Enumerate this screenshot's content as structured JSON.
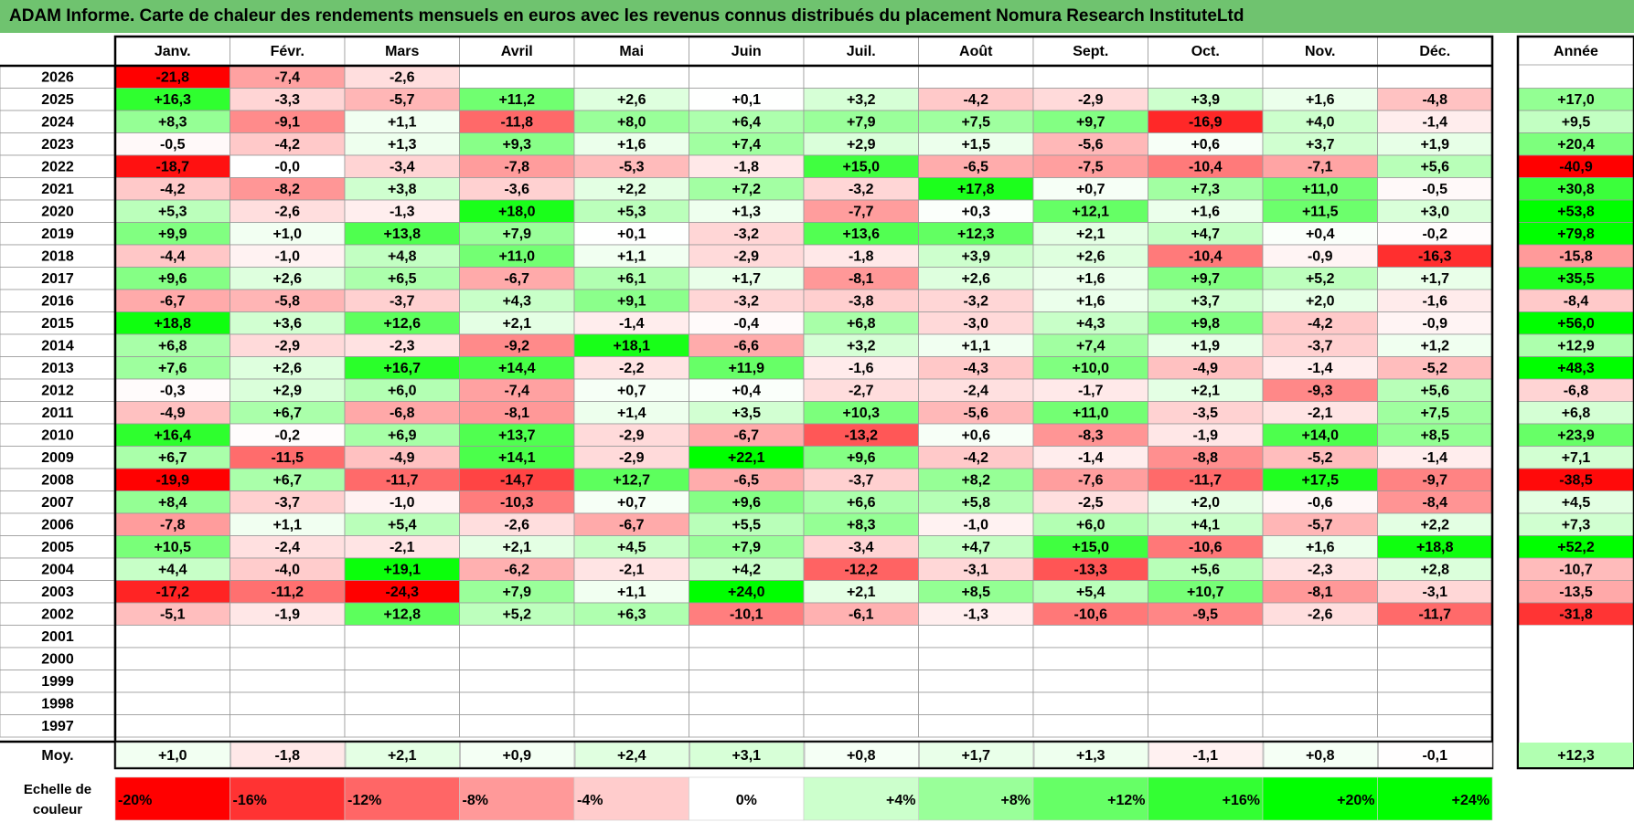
{
  "title": "ADAM Informe. Carte de chaleur des rendements mensuels en euros avec les revenus connus distribués du placement Nomura Research InstituteLtd",
  "chart_data": {
    "type": "heatmap",
    "columns": [
      "Janv.",
      "Févr.",
      "Mars",
      "Avril",
      "Mai",
      "Juin",
      "Juil.",
      "Août",
      "Sept.",
      "Oct.",
      "Nov.",
      "Déc."
    ],
    "year_column_label": "Année",
    "rows": [
      {
        "year": "2026",
        "months": [
          "-21,8",
          "-7,4",
          "-2,6",
          "",
          "",
          "",
          "",
          "",
          "",
          "",
          "",
          ""
        ],
        "annual": ""
      },
      {
        "year": "2025",
        "months": [
          "+16,3",
          "-3,3",
          "-5,7",
          "+11,2",
          "+2,6",
          "+0,1",
          "+3,2",
          "-4,2",
          "-2,9",
          "+3,9",
          "+1,6",
          "-4,8"
        ],
        "annual": "+17,0"
      },
      {
        "year": "2024",
        "months": [
          "+8,3",
          "-9,1",
          "+1,1",
          "-11,8",
          "+8,0",
          "+6,4",
          "+7,9",
          "+7,5",
          "+9,7",
          "-16,9",
          "+4,0",
          "-1,4"
        ],
        "annual": "+9,5"
      },
      {
        "year": "2023",
        "months": [
          "-0,5",
          "-4,2",
          "+1,3",
          "+9,3",
          "+1,6",
          "+7,4",
          "+2,9",
          "+1,5",
          "-5,6",
          "+0,6",
          "+3,7",
          "+1,9"
        ],
        "annual": "+20,4"
      },
      {
        "year": "2022",
        "months": [
          "-18,7",
          "-0,0",
          "-3,4",
          "-7,8",
          "-5,3",
          "-1,8",
          "+15,0",
          "-6,5",
          "-7,5",
          "-10,4",
          "-7,1",
          "+5,6"
        ],
        "annual": "-40,9"
      },
      {
        "year": "2021",
        "months": [
          "-4,2",
          "-8,2",
          "+3,8",
          "-3,6",
          "+2,2",
          "+7,2",
          "-3,2",
          "+17,8",
          "+0,7",
          "+7,3",
          "+11,0",
          "-0,5"
        ],
        "annual": "+30,8"
      },
      {
        "year": "2020",
        "months": [
          "+5,3",
          "-2,6",
          "-1,3",
          "+18,0",
          "+5,3",
          "+1,3",
          "-7,7",
          "+0,3",
          "+12,1",
          "+1,6",
          "+11,5",
          "+3,0"
        ],
        "annual": "+53,8"
      },
      {
        "year": "2019",
        "months": [
          "+9,9",
          "+1,0",
          "+13,8",
          "+7,9",
          "+0,1",
          "-3,2",
          "+13,6",
          "+12,3",
          "+2,1",
          "+4,7",
          "+0,4",
          "-0,2"
        ],
        "annual": "+79,8"
      },
      {
        "year": "2018",
        "months": [
          "-4,4",
          "-1,0",
          "+4,8",
          "+11,0",
          "+1,1",
          "-2,9",
          "-1,8",
          "+3,9",
          "+2,6",
          "-10,4",
          "-0,9",
          "-16,3"
        ],
        "annual": "-15,8"
      },
      {
        "year": "2017",
        "months": [
          "+9,6",
          "+2,6",
          "+6,5",
          "-6,7",
          "+6,1",
          "+1,7",
          "-8,1",
          "+2,6",
          "+1,6",
          "+9,7",
          "+5,2",
          "+1,7"
        ],
        "annual": "+35,5"
      },
      {
        "year": "2016",
        "months": [
          "-6,7",
          "-5,8",
          "-3,7",
          "+4,3",
          "+9,1",
          "-3,2",
          "-3,8",
          "-3,2",
          "+1,6",
          "+3,7",
          "+2,0",
          "-1,6"
        ],
        "annual": "-8,4"
      },
      {
        "year": "2015",
        "months": [
          "+18,8",
          "+3,6",
          "+12,6",
          "+2,1",
          "-1,4",
          "-0,4",
          "+6,8",
          "-3,0",
          "+4,3",
          "+9,8",
          "-4,2",
          "-0,9"
        ],
        "annual": "+56,0"
      },
      {
        "year": "2014",
        "months": [
          "+6,8",
          "-2,9",
          "-2,3",
          "-9,2",
          "+18,1",
          "-6,6",
          "+3,2",
          "+1,1",
          "+7,4",
          "+1,9",
          "-3,7",
          "+1,2"
        ],
        "annual": "+12,9"
      },
      {
        "year": "2013",
        "months": [
          "+7,6",
          "+2,6",
          "+16,7",
          "+14,4",
          "-2,2",
          "+11,9",
          "-1,6",
          "-4,3",
          "+10,0",
          "-4,9",
          "-1,4",
          "-5,2"
        ],
        "annual": "+48,3"
      },
      {
        "year": "2012",
        "months": [
          "-0,3",
          "+2,9",
          "+6,0",
          "-7,4",
          "+0,7",
          "+0,4",
          "-2,7",
          "-2,4",
          "-1,7",
          "+2,1",
          "-9,3",
          "+5,6"
        ],
        "annual": "-6,8"
      },
      {
        "year": "2011",
        "months": [
          "-4,9",
          "+6,7",
          "-6,8",
          "-8,1",
          "+1,4",
          "+3,5",
          "+10,3",
          "-5,6",
          "+11,0",
          "-3,5",
          "-2,1",
          "+7,5"
        ],
        "annual": "+6,8"
      },
      {
        "year": "2010",
        "months": [
          "+16,4",
          "-0,2",
          "+6,9",
          "+13,7",
          "-2,9",
          "-6,7",
          "-13,2",
          "+0,6",
          "-8,3",
          "-1,9",
          "+14,0",
          "+8,5"
        ],
        "annual": "+23,9"
      },
      {
        "year": "2009",
        "months": [
          "+6,7",
          "-11,5",
          "-4,9",
          "+14,1",
          "-2,9",
          "+22,1",
          "+9,6",
          "-4,2",
          "-1,4",
          "-8,8",
          "-5,2",
          "-1,4"
        ],
        "annual": "+7,1"
      },
      {
        "year": "2008",
        "months": [
          "-19,9",
          "+6,7",
          "-11,7",
          "-14,7",
          "+12,7",
          "-6,5",
          "-3,7",
          "+8,2",
          "-7,6",
          "-11,7",
          "+17,5",
          "-9,7"
        ],
        "annual": "-38,5"
      },
      {
        "year": "2007",
        "months": [
          "+8,4",
          "-3,7",
          "-1,0",
          "-10,3",
          "+0,7",
          "+9,6",
          "+6,6",
          "+5,8",
          "-2,5",
          "+2,0",
          "-0,6",
          "-8,4"
        ],
        "annual": "+4,5"
      },
      {
        "year": "2006",
        "months": [
          "-7,8",
          "+1,1",
          "+5,4",
          "-2,6",
          "-6,7",
          "+5,5",
          "+8,3",
          "-1,0",
          "+6,0",
          "+4,1",
          "-5,7",
          "+2,2"
        ],
        "annual": "+7,3"
      },
      {
        "year": "2005",
        "months": [
          "+10,5",
          "-2,4",
          "-2,1",
          "+2,1",
          "+4,5",
          "+7,9",
          "-3,4",
          "+4,7",
          "+15,0",
          "-10,6",
          "+1,6",
          "+18,8"
        ],
        "annual": "+52,2"
      },
      {
        "year": "2004",
        "months": [
          "+4,4",
          "-4,0",
          "+19,1",
          "-6,2",
          "-2,1",
          "+4,2",
          "-12,2",
          "-3,1",
          "-13,3",
          "+5,6",
          "-2,3",
          "+2,8"
        ],
        "annual": "-10,7"
      },
      {
        "year": "2003",
        "months": [
          "-17,2",
          "-11,2",
          "-24,3",
          "+7,9",
          "+1,1",
          "+24,0",
          "+2,1",
          "+8,5",
          "+5,4",
          "+10,7",
          "-8,1",
          "-3,1"
        ],
        "annual": "-13,5"
      },
      {
        "year": "2002",
        "months": [
          "-5,1",
          "-1,9",
          "+12,8",
          "+5,2",
          "+6,3",
          "-10,1",
          "-6,1",
          "-1,3",
          "-10,6",
          "-9,5",
          "-2,6",
          "-11,7"
        ],
        "annual": "-31,8"
      },
      {
        "year": "2001",
        "months": [
          "",
          "",
          "",
          "",
          "",
          "",
          "",
          "",
          "",
          "",
          "",
          ""
        ],
        "annual": ""
      },
      {
        "year": "2000",
        "months": [
          "",
          "",
          "",
          "",
          "",
          "",
          "",
          "",
          "",
          "",
          "",
          ""
        ],
        "annual": ""
      },
      {
        "year": "1999",
        "months": [
          "",
          "",
          "",
          "",
          "",
          "",
          "",
          "",
          "",
          "",
          "",
          ""
        ],
        "annual": ""
      },
      {
        "year": "1998",
        "months": [
          "",
          "",
          "",
          "",
          "",
          "",
          "",
          "",
          "",
          "",
          "",
          ""
        ],
        "annual": ""
      },
      {
        "year": "1997",
        "months": [
          "",
          "",
          "",
          "",
          "",
          "",
          "",
          "",
          "",
          "",
          "",
          ""
        ],
        "annual": ""
      }
    ],
    "average": {
      "label": "Moy.",
      "months": [
        "+1,0",
        "-1,8",
        "+2,1",
        "+0,9",
        "+2,4",
        "+3,1",
        "+0,8",
        "+1,7",
        "+1,3",
        "-1,1",
        "+0,8",
        "-0,1"
      ],
      "annual": "+12,3"
    },
    "scale": {
      "label_line1": "Echelle de",
      "label_line2": "couleur",
      "steps": [
        {
          "label": "-20%",
          "value": -20
        },
        {
          "label": "-16%",
          "value": -16
        },
        {
          "label": "-12%",
          "value": -12
        },
        {
          "label": "-8%",
          "value": -8
        },
        {
          "label": "-4%",
          "value": -4
        },
        {
          "label": "0%",
          "value": 0
        },
        {
          "label": "+4%",
          "value": 4
        },
        {
          "label": "+8%",
          "value": 8
        },
        {
          "label": "+12%",
          "value": 12
        },
        {
          "label": "+16%",
          "value": 16
        },
        {
          "label": "+20%",
          "value": 20
        },
        {
          "label": "+24%",
          "value": 24
        }
      ]
    },
    "colors": {
      "negative": "#ff0000",
      "positive": "#00ff00",
      "neutral": "#ffffff",
      "title_bar": "#6fc36f"
    }
  }
}
